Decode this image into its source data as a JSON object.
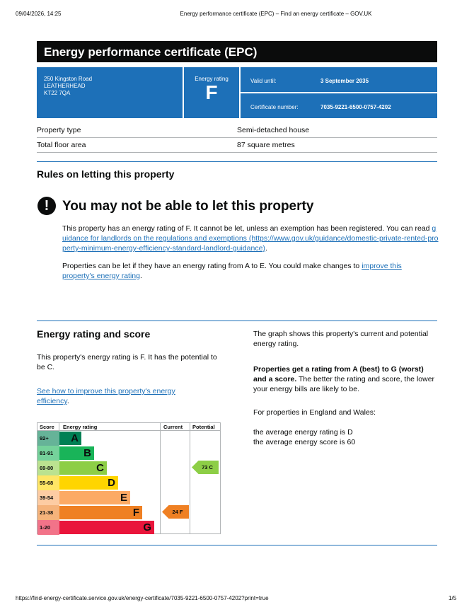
{
  "browser_header": {
    "timestamp": "09/04/2026, 14:25",
    "page_title": "Energy performance certificate (EPC) – Find an energy certificate – GOV.UK"
  },
  "certificate": {
    "title": "Energy performance certificate (EPC)",
    "address": [
      "250 Kingston Road",
      "LEATHERHEAD",
      "KT22 7QA"
    ],
    "energy_rating_label": "Energy rating",
    "energy_rating": "F",
    "valid_until_label": "Valid until:",
    "valid_until": "3 September 2035",
    "certificate_number_label": "Certificate number:",
    "certificate_number": "7035-9221-6500-0757-4202"
  },
  "property": [
    {
      "label": "Property type",
      "value": "Semi-detached house"
    },
    {
      "label": "Total floor area",
      "value": "87 square metres"
    }
  ],
  "letting": {
    "heading": "Rules on letting this property",
    "warning": "You may not be able to let this property",
    "paragraph_1": [
      "This property has an energy rating of F. It cannot be let, unless an exemption has been registered. You can read ",
      "guidance for landlords on the regulations and exemptions (https://www.gov.uk/guidance/domestic-private-rented-property-minimum-energy-efficiency-standard-landlord-guidance)",
      "."
    ],
    "paragraph_2": [
      "Properties can be let if they have an energy rating from A to E. You could make changes to ",
      "improve this property's energy rating",
      "."
    ]
  },
  "rating_section": {
    "heading": "Energy rating and score",
    "text": "This property's energy rating is F. It has the potential to be C.",
    "link": "See how to improve this property's energy efficiency",
    "link_end": "."
  },
  "graph": {
    "headers": [
      "Score",
      "Energy rating",
      "Current",
      "Potential"
    ],
    "bands": [
      {
        "score": "92+",
        "letter": "A"
      },
      {
        "score": "81-91",
        "letter": "B"
      },
      {
        "score": "69-80",
        "letter": "C"
      },
      {
        "score": "55-68",
        "letter": "D"
      },
      {
        "score": "39-54",
        "letter": "E"
      },
      {
        "score": "21-38",
        "letter": "F"
      },
      {
        "score": "1-20",
        "letter": "G"
      }
    ],
    "current": "24 F",
    "potential": "73 C"
  },
  "side": {
    "intro": "The graph shows this property's current and potential energy rating.",
    "bold": "Properties get a rating from A (best) to G (worst) and a score.",
    "rest": " The better the rating and score, the lower your energy bills are likely to be.",
    "region": "For properties in England and Wales:",
    "average_rating": "the average energy rating is D",
    "average_score": "the average energy score is 60"
  },
  "footer": {
    "url": "https://find-energy-certificate.service.gov.uk/energy-certificate/7035-9221-6500-0757-4202?print=true",
    "page": "1/5"
  }
}
